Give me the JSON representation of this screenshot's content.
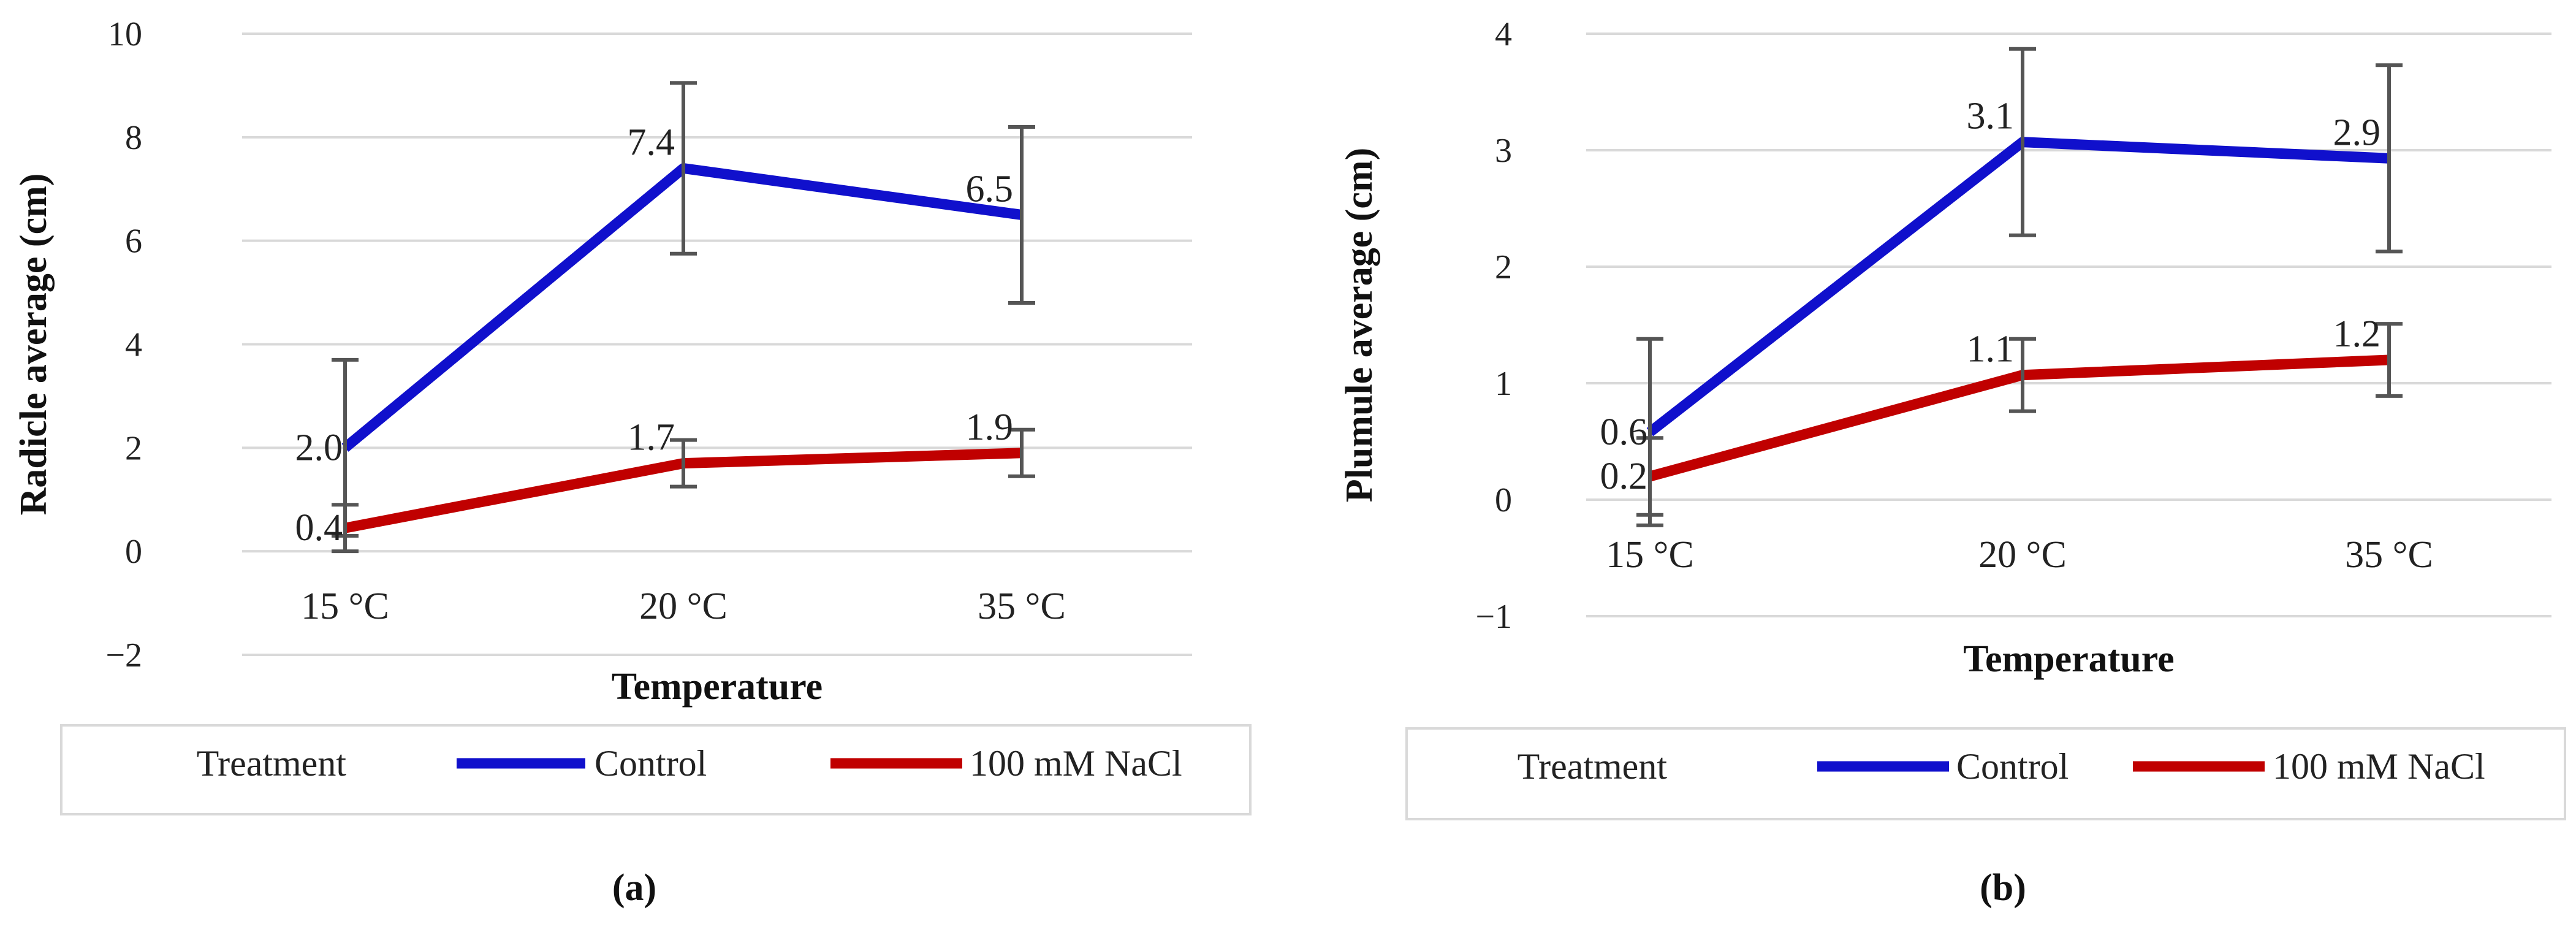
{
  "chart_data": [
    {
      "id": "a",
      "type": "line",
      "caption": "(a)",
      "categories": [
        "15 °C",
        "20 °C",
        "35 °C"
      ],
      "xlabel": "Temperature",
      "ylabel": "Radicle average (cm)",
      "ylim": [
        -2,
        10
      ],
      "yticks": [
        -2,
        0,
        2,
        4,
        6,
        8,
        10
      ],
      "ytick_labels": [
        "−2",
        "0",
        "2",
        "4",
        "6",
        "8",
        "10"
      ],
      "grid": true,
      "legend_title": "Treatment",
      "legend_position": "bottom",
      "series": [
        {
          "name": "Control",
          "color": "#1010cc",
          "values": [
            2.0,
            7.4,
            6.5
          ],
          "labels": [
            "2.0",
            "7.4",
            "6.5"
          ],
          "err": [
            1.7,
            1.65,
            1.7
          ]
        },
        {
          "name": "100 mM NaCl",
          "color": "#c00000",
          "values": [
            0.45,
            1.7,
            1.9
          ],
          "labels": [
            "0.4",
            "1.7",
            "1.9"
          ],
          "err": [
            0.45,
            0.45,
            0.45
          ]
        }
      ]
    },
    {
      "id": "b",
      "type": "line",
      "caption": "(b)",
      "categories": [
        "15 °C",
        "20 °C",
        "35 °C"
      ],
      "xlabel": "Temperature",
      "ylabel": "Plumule average (cm)",
      "ylim": [
        -1,
        4
      ],
      "yticks": [
        -1,
        0,
        1,
        2,
        3,
        4
      ],
      "ytick_labels": [
        "−1",
        "0",
        "1",
        "2",
        "3",
        "4"
      ],
      "grid": true,
      "legend_title": "Treatment",
      "legend_position": "bottom",
      "series": [
        {
          "name": "Control",
          "color": "#1010cc",
          "values": [
            0.58,
            3.07,
            2.93
          ],
          "labels": [
            "0.6",
            "3.1",
            "2.9"
          ],
          "err": [
            0.8,
            0.8,
            0.8
          ]
        },
        {
          "name": "100 mM NaCl",
          "color": "#c00000",
          "values": [
            0.2,
            1.07,
            1.2
          ],
          "labels": [
            "0.2",
            "1.1",
            "1.2"
          ],
          "err": [
            0.33,
            0.31,
            0.31
          ]
        }
      ]
    }
  ]
}
